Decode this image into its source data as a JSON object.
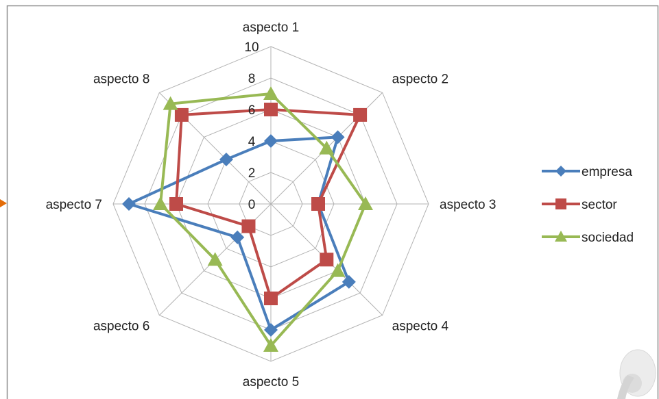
{
  "chart_data": {
    "type": "radar",
    "categories": [
      "aspecto 1",
      "aspecto 2",
      "aspecto 3",
      "aspecto 4",
      "aspecto 5",
      "aspecto 6",
      "aspecto 7",
      "aspecto 8"
    ],
    "series": [
      {
        "name": "empresa",
        "values": [
          4,
          6,
          3,
          7,
          8,
          3,
          9,
          4
        ],
        "color": "#4a7ebb",
        "marker": "diamond"
      },
      {
        "name": "sector",
        "values": [
          6,
          8,
          3,
          5,
          6,
          2,
          6,
          8
        ],
        "color": "#be4b48",
        "marker": "square"
      },
      {
        "name": "sociedad",
        "values": [
          7,
          5,
          6,
          6,
          9,
          5,
          7,
          9
        ],
        "color": "#98b954",
        "marker": "triangle"
      }
    ],
    "rlim": [
      0,
      10
    ],
    "ticks": [
      "0",
      "2",
      "4",
      "6",
      "8",
      "10"
    ],
    "grid": true,
    "legend_position": "right"
  },
  "colors": {
    "grid": "#b3b3b3",
    "frame": "#8c8c8c",
    "arrow": "#e36c09"
  }
}
